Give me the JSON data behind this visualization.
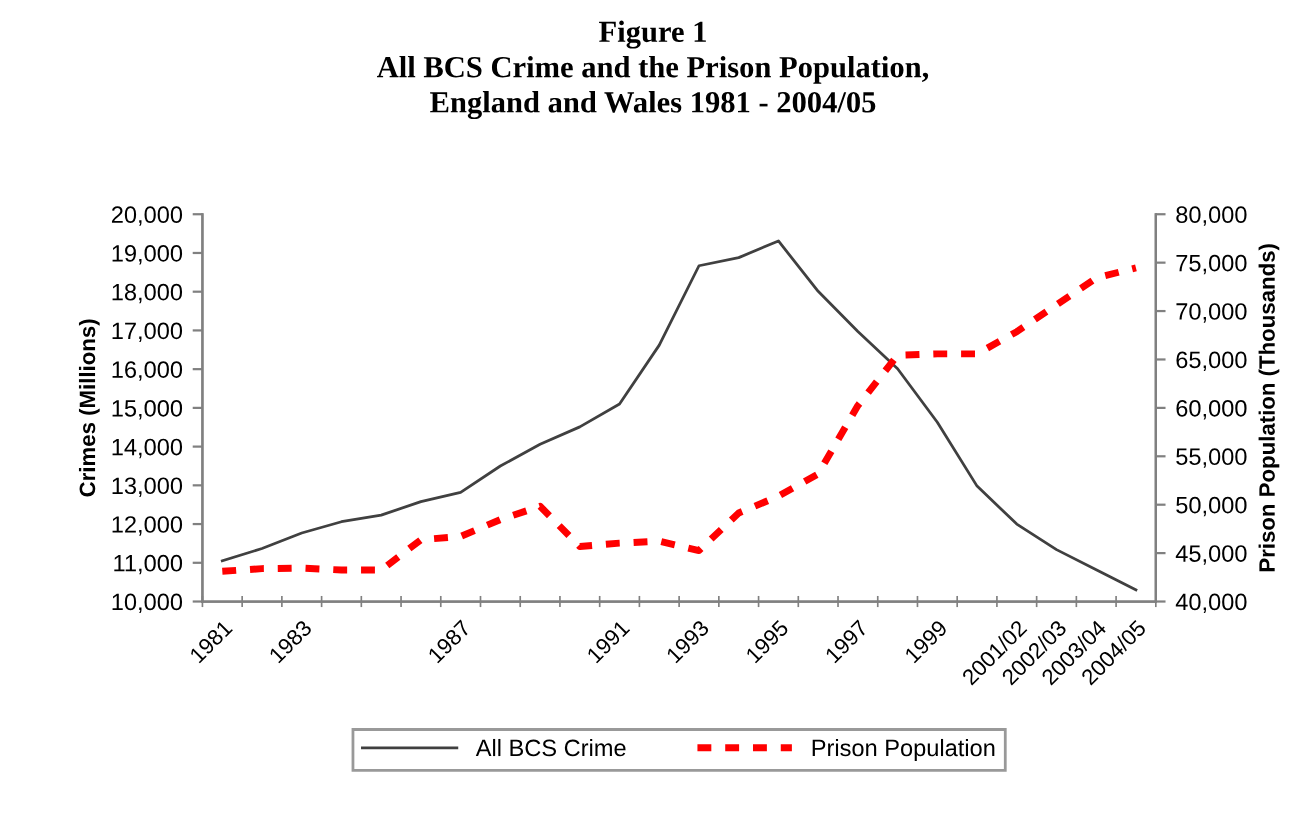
{
  "chart_data": {
    "type": "line",
    "title": "Figure 1\nAll BCS Crime and the Prison Population,\nEngland and Wales 1981 - 2004/05",
    "ylabel": "Crimes (Millions)",
    "y2label": "Prison Population (Thousands)",
    "categories": [
      "1981",
      null,
      "1983",
      null,
      null,
      null,
      "1987",
      null,
      null,
      null,
      "1991",
      null,
      "1993",
      null,
      "1995",
      null,
      "1997",
      null,
      "1999",
      null,
      "2001/02",
      "2002/03",
      "2003/04",
      "2004/05"
    ],
    "series": [
      {
        "name": "All BCS Crime",
        "color": "#404040",
        "line_style": "solid",
        "values": [
          11050,
          11370,
          11770,
          12060,
          12230,
          12580,
          12820,
          13500,
          14060,
          14510,
          15100,
          16620,
          18670,
          18880,
          19310,
          18010,
          16970,
          16010,
          14630,
          12980,
          12000,
          11340,
          10820,
          10300
        ]
      },
      {
        "name": "Prison Population",
        "color": "#ff0000",
        "line_style": "dashed",
        "axis": "y2",
        "values": [
          43120,
          43400,
          43450,
          43250,
          43250,
          46380,
          46720,
          48460,
          49840,
          45680,
          46030,
          46240,
          45260,
          49150,
          50880,
          53170,
          60240,
          65440,
          65580,
          65580,
          67870,
          70640,
          73420,
          74460
        ]
      }
    ],
    "ylim": [
      10000,
      20000
    ],
    "yticks": [
      {
        "value": 10000,
        "label": "10,000"
      },
      {
        "value": 11000,
        "label": "11,000"
      },
      {
        "value": 12000,
        "label": "12,000"
      },
      {
        "value": 13000,
        "label": "13,000"
      },
      {
        "value": 14000,
        "label": "14,000"
      },
      {
        "value": 15000,
        "label": "15,000"
      },
      {
        "value": 16000,
        "label": "16,000"
      },
      {
        "value": 17000,
        "label": "17,000"
      },
      {
        "value": 18000,
        "label": "18,000"
      },
      {
        "value": 19000,
        "label": "19,000"
      },
      {
        "value": 20000,
        "label": "20,000"
      }
    ],
    "y2lim": [
      40000,
      80000
    ],
    "y2ticks": [
      {
        "value": 40000,
        "label": "40,000"
      },
      {
        "value": 45000,
        "label": "45,000"
      },
      {
        "value": 50000,
        "label": "50,000"
      },
      {
        "value": 55000,
        "label": "55,000"
      },
      {
        "value": 60000,
        "label": "60,000"
      },
      {
        "value": 65000,
        "label": "65,000"
      },
      {
        "value": 70000,
        "label": "70,000"
      },
      {
        "value": 75000,
        "label": "75,000"
      },
      {
        "value": 80000,
        "label": "80,000"
      }
    ],
    "grid": false,
    "legend": "bottom",
    "marker": "none"
  }
}
